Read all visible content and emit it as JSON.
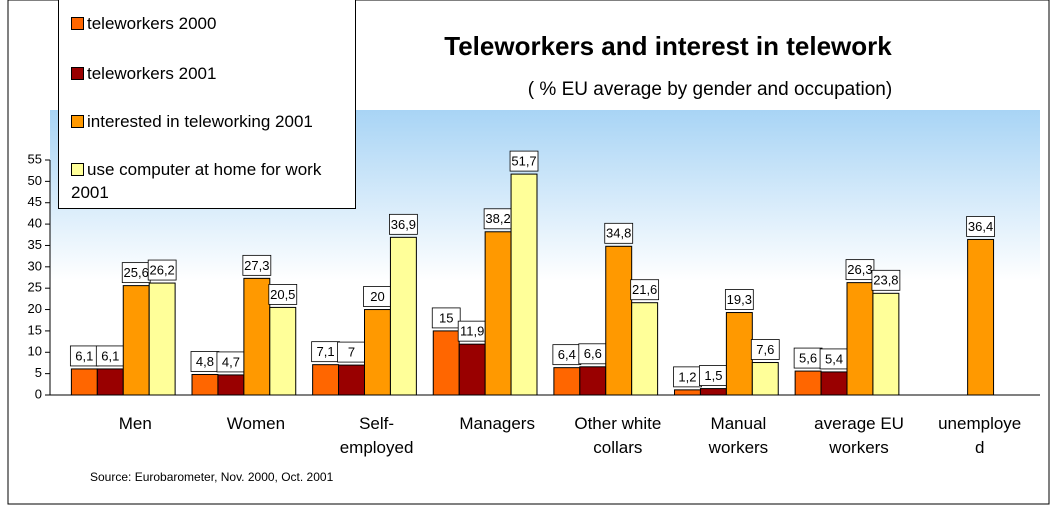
{
  "chart_data": {
    "type": "bar",
    "title": "Teleworkers and interest in telework",
    "subtitle": "(  %  EU average by gender and occupation)",
    "source": "Source: Eurobarometer, Nov. 2000, Oct.  2001",
    "categories": [
      "Men",
      "Women",
      "Self-\nemployed",
      "Managers",
      "Other white\ncollars",
      "Manual\nworkers",
      "average EU\nworkers",
      "unemploye\nd"
    ],
    "series": [
      {
        "name": "teleworkers 2000",
        "color": "#ff6600",
        "values": [
          6.1,
          4.8,
          7.1,
          15,
          6.4,
          1.2,
          5.6,
          null
        ],
        "value_labels": [
          "6,1",
          "4,8",
          "7,1",
          "15",
          "6,4",
          "1,2",
          "5,6",
          null
        ]
      },
      {
        "name": "teleworkers 2001",
        "color": "#990000",
        "values": [
          6.1,
          4.7,
          7,
          11.9,
          6.6,
          1.5,
          5.4,
          null
        ],
        "value_labels": [
          "6,1",
          "4,7",
          "7",
          "11,9",
          "6,6",
          "1,5",
          "5,4",
          null
        ]
      },
      {
        "name": "interested in teleworking 2001",
        "color": "#ff9900",
        "values": [
          25.6,
          27.3,
          20,
          38.2,
          34.8,
          19.3,
          26.3,
          36.4
        ],
        "value_labels": [
          "25,6",
          "27,3",
          "20",
          "38,2",
          "34,8",
          "19,3",
          "26,3",
          "36,4"
        ]
      },
      {
        "name": "use computer at home for work 2001",
        "color": "#ffff99",
        "values": [
          26.2,
          20.5,
          36.9,
          51.7,
          21.6,
          7.6,
          23.8,
          null
        ],
        "value_labels": [
          "26,2",
          "20,5",
          "36,9",
          "51,7",
          "21,6",
          "7,6",
          "23,8",
          null
        ]
      }
    ],
    "ylim": [
      0,
      55
    ],
    "yticks": [
      0,
      5,
      10,
      15,
      20,
      25,
      30,
      35,
      40,
      45,
      50,
      55
    ],
    "legend": "upper left"
  }
}
